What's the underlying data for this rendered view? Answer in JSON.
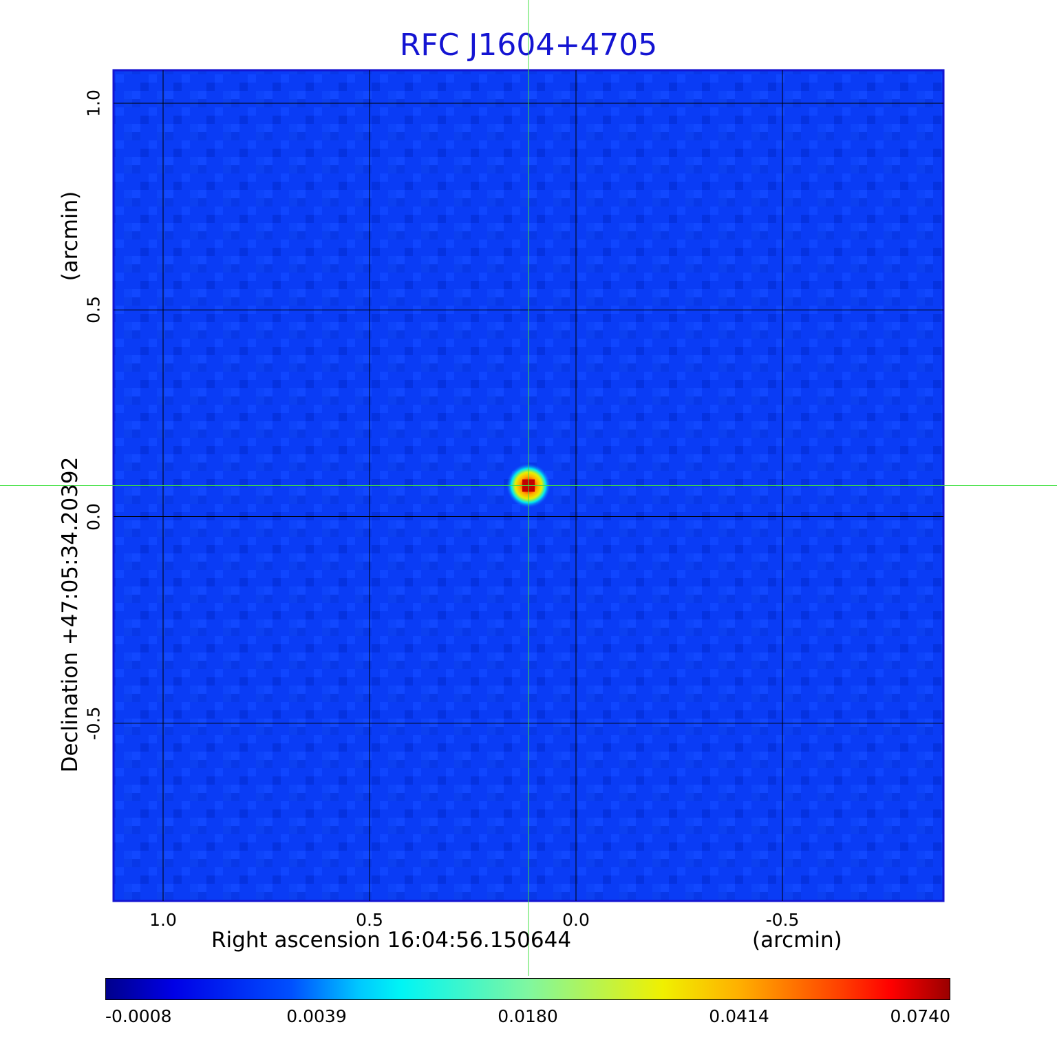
{
  "chart_data": {
    "type": "heatmap",
    "title": "RFC J1604+4705",
    "xlabel": "Right ascension  16:04:56.150644",
    "xunit": "(arcmin)",
    "ylabel": "Declination  +47:05:34.20392",
    "yunit": "(arcmin)",
    "x_ticks": [
      "1.0",
      "0.5",
      "0.0",
      "-0.5"
    ],
    "y_ticks": [
      "1.0",
      "0.5",
      "0.0",
      "-0.5"
    ],
    "x_tick_values": [
      1.0,
      0.5,
      0.0,
      -0.5
    ],
    "y_tick_values": [
      1.0,
      0.5,
      0.0,
      -0.5
    ],
    "xlim": [
      1.12,
      -0.89
    ],
    "ylim": [
      -0.93,
      1.08
    ],
    "grid": true,
    "source": {
      "x": 0.115,
      "y": 0.075,
      "peak": 0.074
    },
    "crosshair": {
      "x": 0.115,
      "y": 0.075,
      "color": "#40e040"
    },
    "colorbar": {
      "ticks": [
        "-0.0008",
        "0.0039",
        "0.0180",
        "0.0414",
        "0.0740"
      ],
      "tick_values": [
        -0.0008,
        0.0039,
        0.018,
        0.0414,
        0.074
      ],
      "colormap": "jet"
    },
    "colors": {
      "title": "#1414d2",
      "frame": "#1414d2",
      "background_map": "#0a3cff"
    }
  }
}
